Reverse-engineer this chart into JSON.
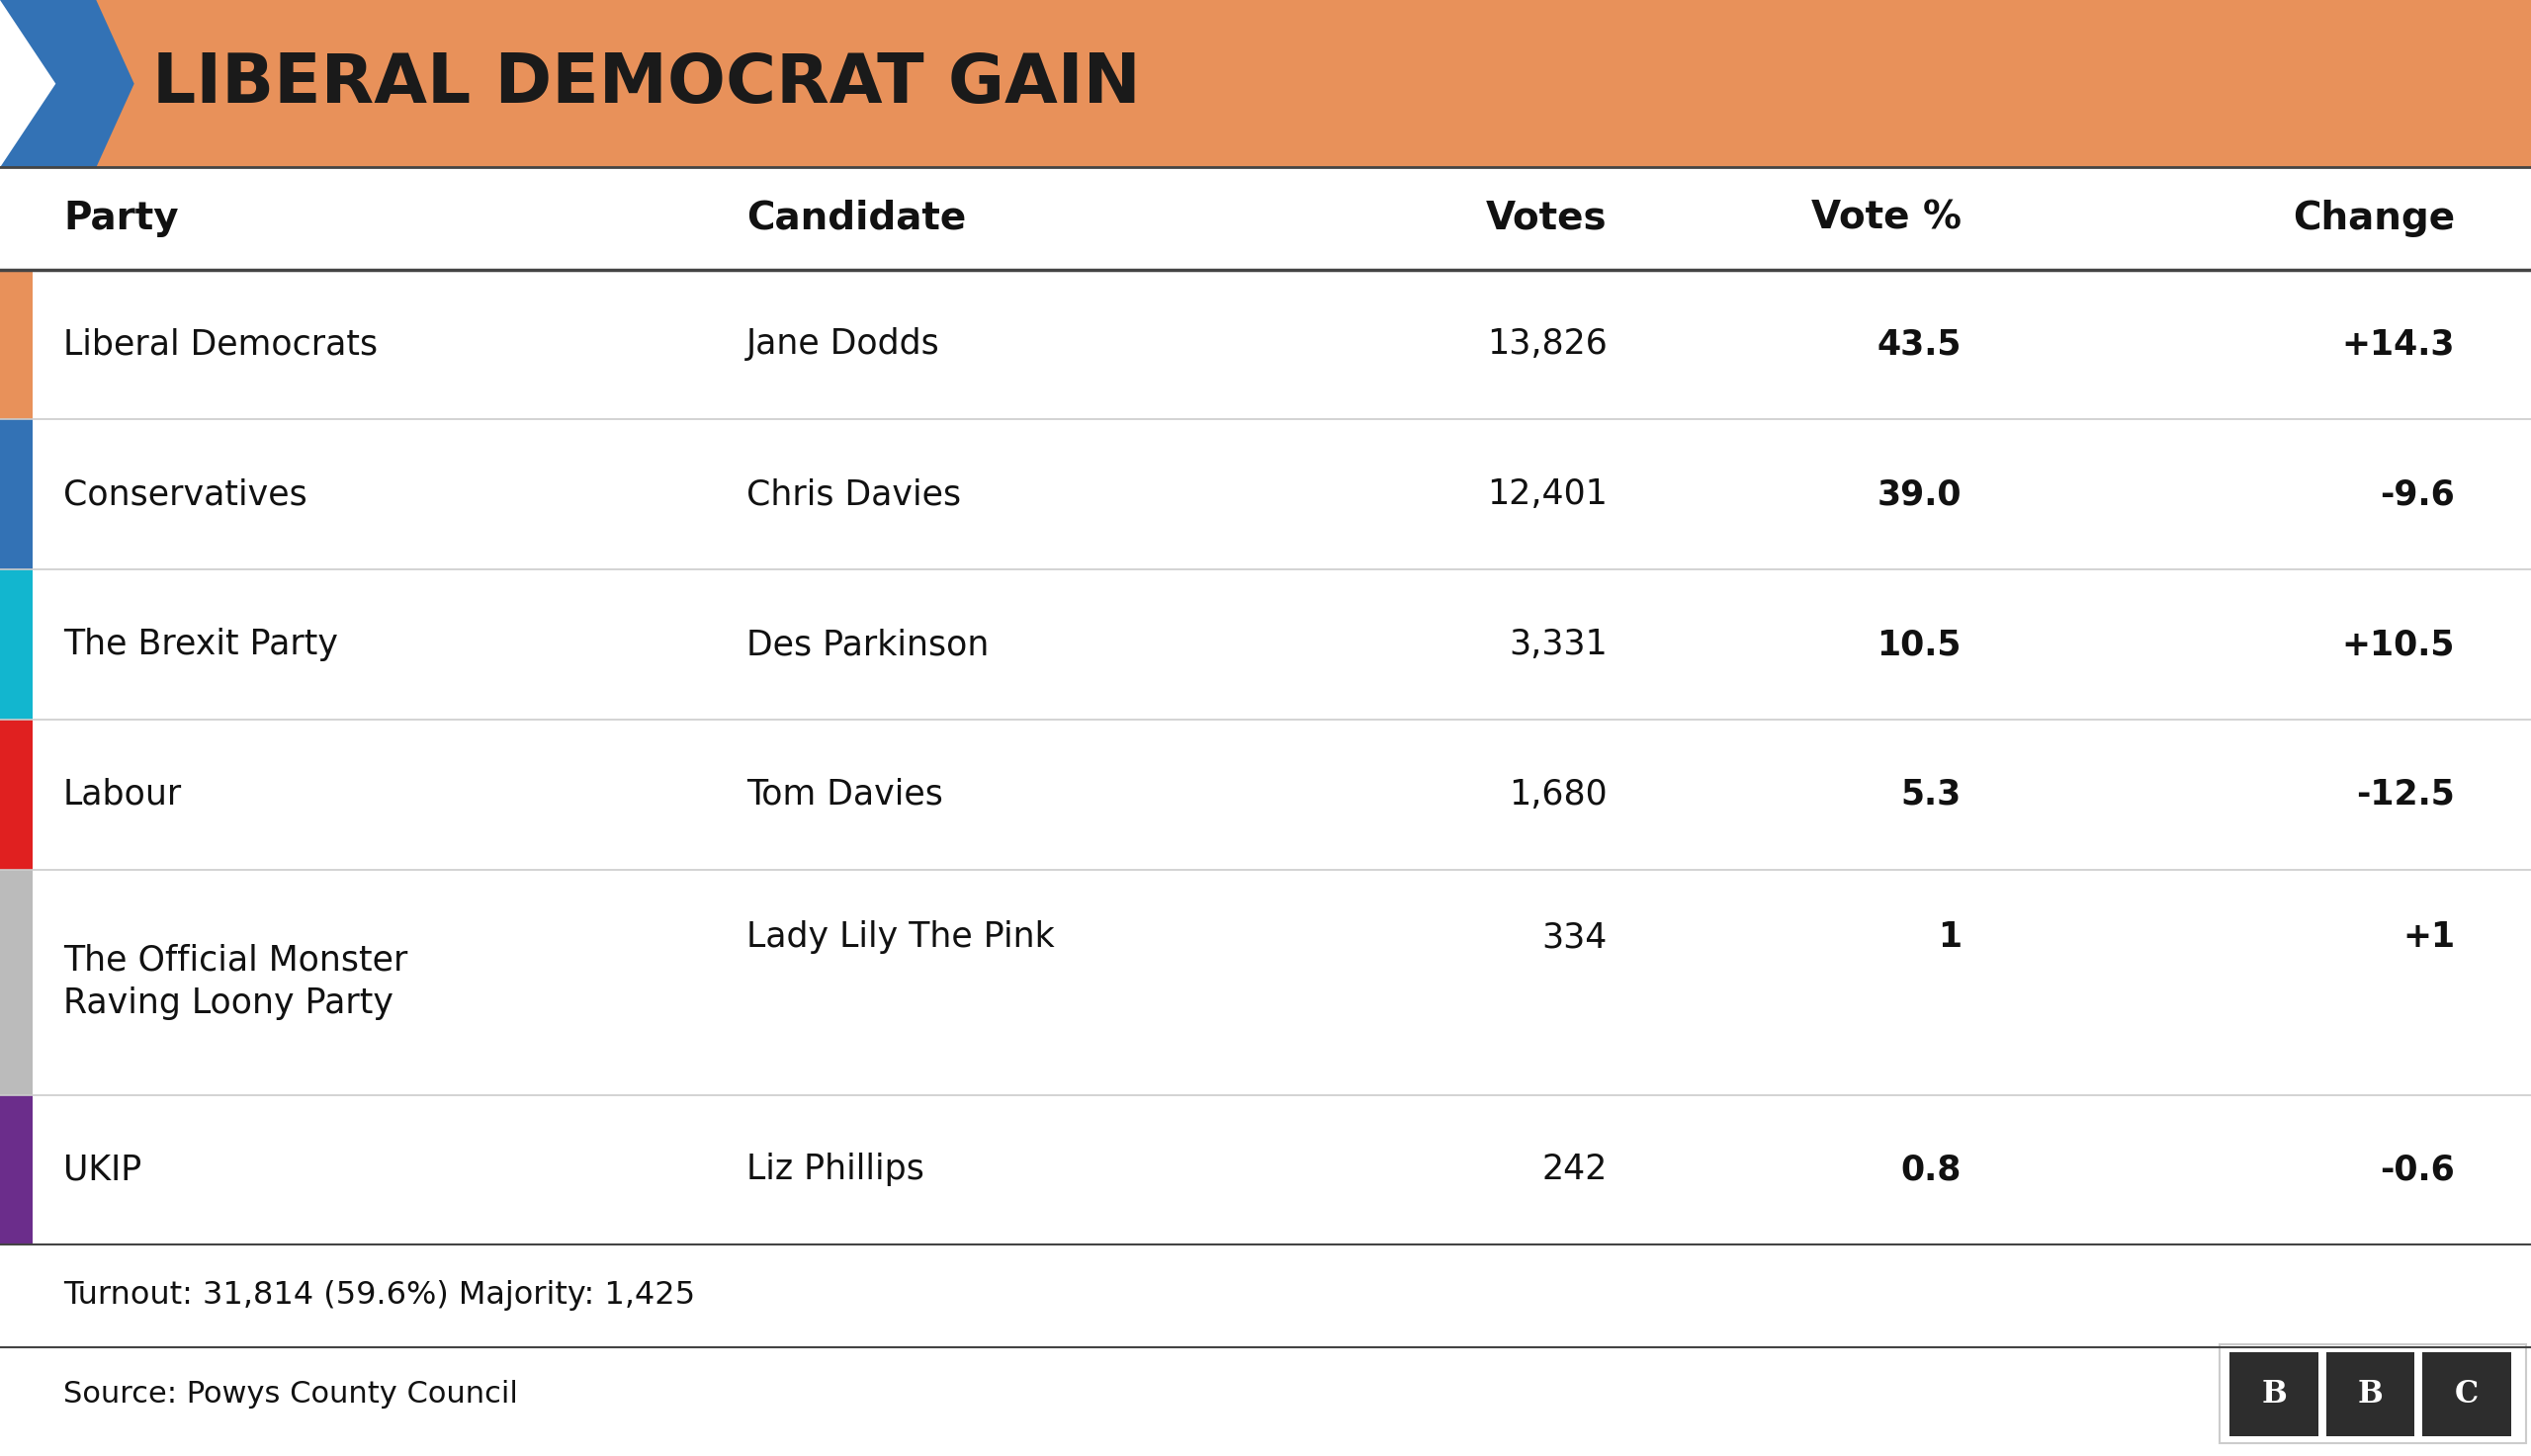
{
  "title": "LIBERAL DEMOCRAT GAIN",
  "title_bg_color": "#E8915A",
  "title_text_color": "#1a1a1a",
  "arrow_color": "#3372B5",
  "header": [
    "Party",
    "Candidate",
    "Votes",
    "Vote %",
    "Change"
  ],
  "rows": [
    {
      "party": "Liberal Democrats",
      "candidate": "Jane Dodds",
      "votes": "13,826",
      "vote_pct": "43.5",
      "change": "+14.3",
      "bar_color": "#E8915A",
      "two_line": false
    },
    {
      "party": "Conservatives",
      "candidate": "Chris Davies",
      "votes": "12,401",
      "vote_pct": "39.0",
      "change": "-9.6",
      "bar_color": "#3372B5",
      "two_line": false
    },
    {
      "party": "The Brexit Party",
      "candidate": "Des Parkinson",
      "votes": "3,331",
      "vote_pct": "10.5",
      "change": "+10.5",
      "bar_color": "#12B6CF",
      "two_line": false
    },
    {
      "party": "Labour",
      "candidate": "Tom Davies",
      "votes": "1,680",
      "vote_pct": "5.3",
      "change": "-12.5",
      "bar_color": "#E02020",
      "two_line": false
    },
    {
      "party": "The Official Monster\nRaving Loony Party",
      "candidate": "Lady Lily The Pink",
      "votes": "334",
      "vote_pct": "1",
      "change": "+1",
      "bar_color": "#BBBBBB",
      "two_line": true
    },
    {
      "party": "UKIP",
      "candidate": "Liz Phillips",
      "votes": "242",
      "vote_pct": "0.8",
      "change": "-0.6",
      "bar_color": "#6B2D8B",
      "two_line": false
    }
  ],
  "turnout_text": "Turnout: 31,814 (59.6%) Majority: 1,425",
  "source_text": "Source: Powys County Council",
  "bg_color": "#ffffff",
  "header_text_color": "#111111",
  "row_text_color": "#111111",
  "line_color_dark": "#444444",
  "line_color_light": "#cccccc",
  "bbc_box_color": "#2d2d2d",
  "bbc_text_color": "#ffffff"
}
